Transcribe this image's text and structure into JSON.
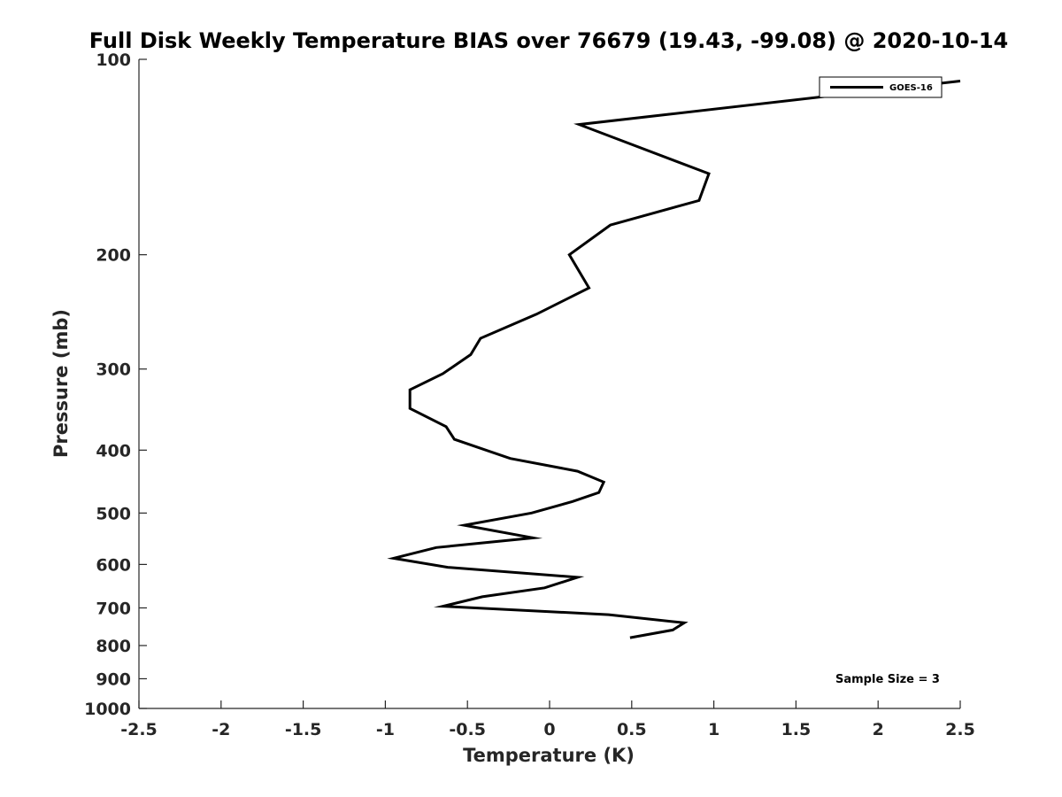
{
  "chart_data": {
    "type": "line",
    "title": "Full Disk Weekly Temperature BIAS over 76679 (19.43, -99.08) @ 2020-10-14",
    "xlabel": "Temperature (K)",
    "ylabel": "Pressure (mb)",
    "xlim": [
      -2.5,
      2.5
    ],
    "ylim": [
      100,
      1000
    ],
    "y_scale": "log",
    "y_reversed": true,
    "grid": false,
    "x_ticks": [
      -2.5,
      -2,
      -1.5,
      -1,
      -0.5,
      0,
      0.5,
      1,
      1.5,
      2,
      2.5
    ],
    "x_tick_labels": [
      "-2.5",
      "-2",
      "-1.5",
      "-1",
      "-0.5",
      "0",
      "0.5",
      "1",
      "1.5",
      "2",
      "2.5"
    ],
    "y_ticks": [
      100,
      200,
      300,
      400,
      500,
      600,
      700,
      800,
      900,
      1000
    ],
    "y_tick_labels": [
      "100",
      "200",
      "300",
      "400",
      "500",
      "600",
      "700",
      "800",
      "900",
      "1000"
    ],
    "legend": {
      "position": "top-right",
      "entries": [
        "GOES-16"
      ]
    },
    "annotation": "Sample Size = 3",
    "series": [
      {
        "name": "GOES-16",
        "color": "#000000",
        "points": [
          [
            2.5,
            108
          ],
          [
            0.18,
            126
          ],
          [
            0.97,
            150
          ],
          [
            0.91,
            165
          ],
          [
            0.37,
            180
          ],
          [
            0.12,
            200
          ],
          [
            0.24,
            225
          ],
          [
            -0.08,
            247
          ],
          [
            -0.42,
            269
          ],
          [
            -0.48,
            285
          ],
          [
            -0.65,
            305
          ],
          [
            -0.85,
            323
          ],
          [
            -0.85,
            345
          ],
          [
            -0.63,
            368
          ],
          [
            -0.58,
            385
          ],
          [
            -0.24,
            412
          ],
          [
            0.17,
            431
          ],
          [
            0.33,
            448
          ],
          [
            0.3,
            465
          ],
          [
            0.14,
            480
          ],
          [
            -0.11,
            500
          ],
          [
            -0.52,
            522
          ],
          [
            -0.1,
            546
          ],
          [
            -0.69,
            565
          ],
          [
            -0.95,
            587
          ],
          [
            -0.62,
            606
          ],
          [
            0.17,
            628
          ],
          [
            -0.03,
            652
          ],
          [
            -0.41,
            673
          ],
          [
            -0.65,
            696
          ],
          [
            0.36,
            717
          ],
          [
            0.82,
            738
          ],
          [
            0.75,
            757
          ],
          [
            0.49,
            778
          ]
        ]
      }
    ]
  }
}
